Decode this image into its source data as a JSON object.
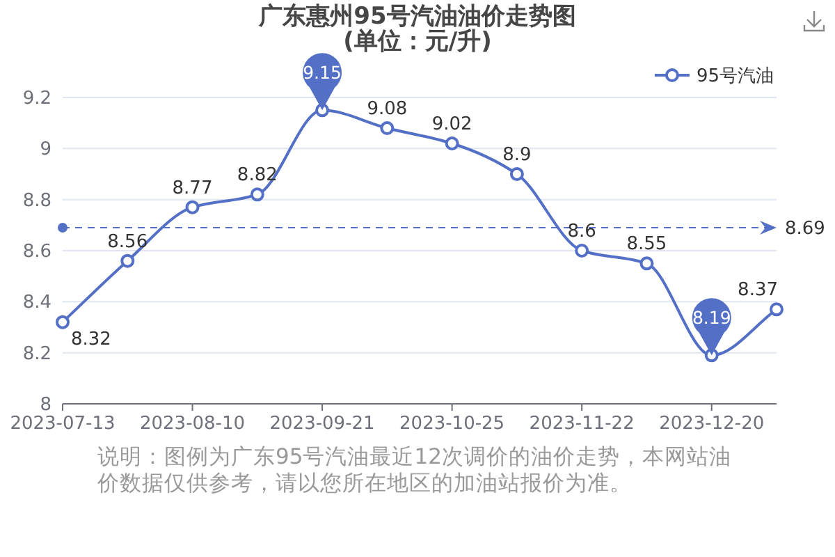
{
  "chart_data": {
    "type": "line",
    "title": "广东惠州95号汽油油价走势图",
    "subtitle": "(单位：元/升)",
    "categories": [
      "2023-07-13",
      null,
      "2023-08-10",
      null,
      "2023-09-21",
      null,
      "2023-10-25",
      null,
      "2023-11-22",
      null,
      "2023-12-20",
      null
    ],
    "series": [
      {
        "name": "95号汽油",
        "color": "#5470c6",
        "values": [
          8.32,
          8.56,
          8.77,
          8.82,
          9.15,
          9.08,
          9.02,
          8.9,
          8.6,
          8.55,
          8.19,
          8.37
        ],
        "value_labels": [
          "8.32",
          "8.56",
          "8.77",
          "8.82",
          null,
          "9.08",
          "9.02",
          "8.9",
          "8.6",
          "8.55",
          null,
          "8.37"
        ]
      }
    ],
    "ylim": [
      8,
      9.2
    ],
    "yticks": [
      8,
      8.2,
      8.4,
      8.6,
      8.8,
      9,
      9.2
    ],
    "grid": "y",
    "legend": "top right",
    "marker": "circle",
    "line_style": "solid",
    "ref_lines": [
      {
        "axis": "y",
        "value": 8.69,
        "label": "8.69",
        "color": "#5470c6",
        "line_style": "dashed"
      }
    ],
    "annotations": [
      {
        "text": "9.15",
        "x": "2023-09-21",
        "y": 9.15
      },
      {
        "text": "8.19",
        "x": "2023-12-20",
        "y": 8.19
      },
      "说明：图例为广东95号汽油最近12次调价的油价走势，本网站油价数据仅供参考，请以您所在地区的加油站报价为准。"
    ]
  }
}
